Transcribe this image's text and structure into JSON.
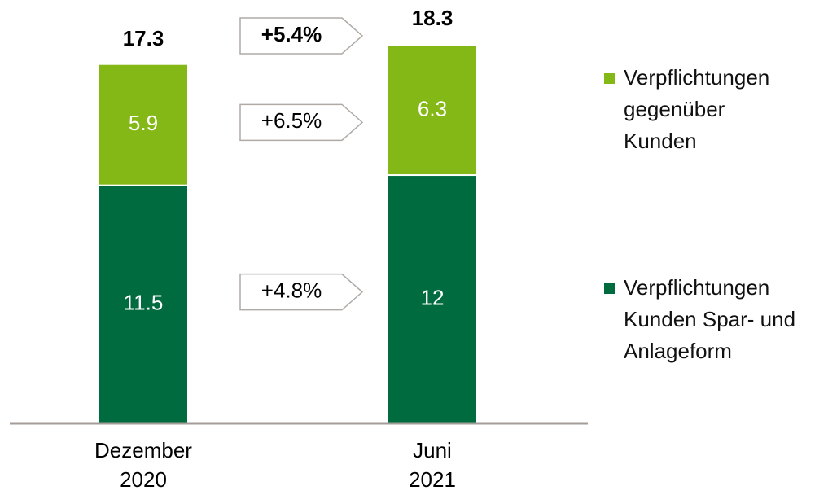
{
  "chart_data": {
    "type": "stacked-bar",
    "categories": [
      "Dezember\n2020",
      "Juni\n2021"
    ],
    "series": [
      {
        "name": "Verpflichtungen\nKunden Spar- und\nAnlageform",
        "color": "#006b3f",
        "values": [
          11.5,
          12.0
        ]
      },
      {
        "name": "Verpflichtungen\ngegenüber\nKunden",
        "color": "#84b817",
        "values": [
          5.9,
          6.3
        ]
      }
    ],
    "totals": [
      17.3,
      18.3
    ],
    "total_change": "+5.4%",
    "series_changes": [
      "+4.8%",
      "+6.5%"
    ]
  }
}
